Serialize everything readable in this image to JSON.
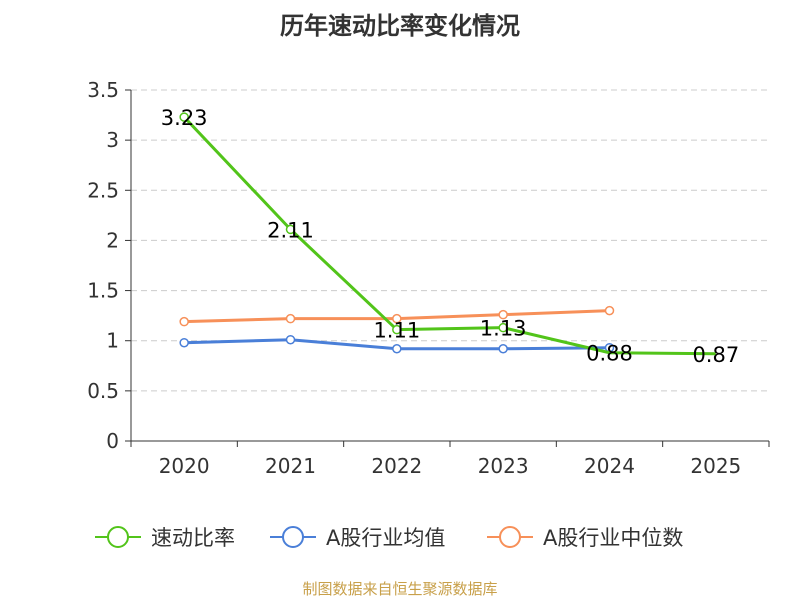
{
  "chart_data": {
    "type": "line",
    "title": "历年速动比率变化情况",
    "categories": [
      "2020",
      "2021",
      "2022",
      "2023",
      "2024",
      "2025"
    ],
    "yticks": [
      "0",
      "0.5",
      "1",
      "1.5",
      "2",
      "2.5",
      "3",
      "3.5"
    ],
    "ylim": [
      0,
      3.5
    ],
    "grid": true,
    "legend_position": "bottom",
    "series": [
      {
        "name": "速动比率",
        "color": "#52c41a",
        "values": [
          3.23,
          2.11,
          1.11,
          1.13,
          0.88,
          0.87
        ],
        "labels": [
          "3.23",
          "2.11",
          "1.11",
          "1.13",
          "0.88",
          "0.87"
        ],
        "markers": [
          true,
          true,
          true,
          true,
          false,
          false
        ]
      },
      {
        "name": "A股行业均值",
        "color": "#4a7fd8",
        "values": [
          0.98,
          1.01,
          0.92,
          0.92,
          0.93,
          null
        ],
        "markers": [
          true,
          true,
          true,
          true,
          true,
          false
        ]
      },
      {
        "name": "A股行业中位数",
        "color": "#f79059",
        "values": [
          1.19,
          1.22,
          1.22,
          1.26,
          1.3,
          null
        ],
        "markers": [
          true,
          true,
          true,
          true,
          true,
          false
        ]
      }
    ],
    "source": "制图数据来自恒生聚源数据库"
  }
}
